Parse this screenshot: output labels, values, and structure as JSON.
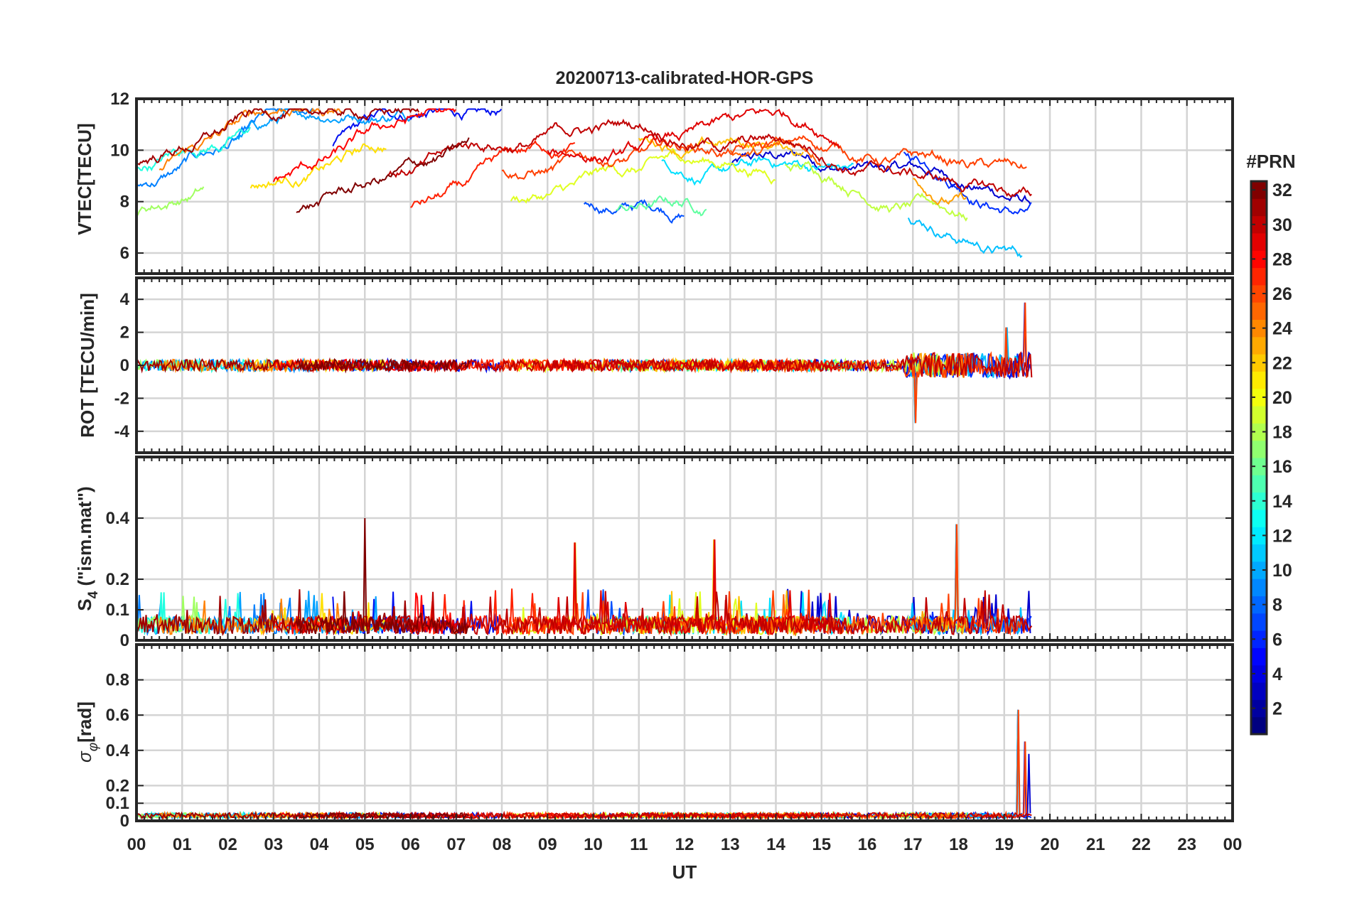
{
  "chart_data": {
    "type": "line",
    "title": "20200713-calibrated-HOR-GPS",
    "xlabel": "UT",
    "x_unit": "hours",
    "xlim": [
      0,
      24
    ],
    "x_ticks": [
      0,
      1,
      2,
      3,
      4,
      5,
      6,
      7,
      8,
      9,
      10,
      11,
      12,
      13,
      14,
      15,
      16,
      17,
      18,
      19,
      20,
      21,
      22,
      23,
      24
    ],
    "x_tick_labels": [
      "00",
      "01",
      "02",
      "03",
      "04",
      "05",
      "06",
      "07",
      "08",
      "09",
      "10",
      "11",
      "12",
      "13",
      "14",
      "15",
      "16",
      "17",
      "18",
      "19",
      "20",
      "21",
      "22",
      "23",
      "00"
    ],
    "data_span": [
      0,
      19.65
    ],
    "panels": [
      {
        "id": "vtec",
        "ylabel": "VTEC[TECU]",
        "ylim": [
          5.2,
          12
        ],
        "y_ticks": [
          6,
          8,
          10,
          12
        ],
        "y_tick_labels": [
          "6",
          "8",
          "10",
          "12"
        ],
        "baseline_range": [
          7.5,
          10.5
        ],
        "noise": 0.35
      },
      {
        "id": "rot",
        "ylabel": "ROT [TECU/min]",
        "ylim": [
          -5.3,
          5.3
        ],
        "y_ticks": [
          -4,
          -2,
          0,
          2,
          4
        ],
        "y_tick_labels": [
          "-4",
          "-2",
          "0",
          "2",
          "4"
        ],
        "baseline_range": [
          0,
          0
        ],
        "noise": 0.35,
        "peaks": [
          {
            "x": 17.05,
            "value": -3.5
          },
          {
            "x": 19.45,
            "value": 3.8
          },
          {
            "x": 19.05,
            "value": 2.3
          }
        ]
      },
      {
        "id": "s4",
        "ylabel": "S4 (\"ism.mat\")",
        "ylabel_main": "S",
        "ylabel_sub": "4",
        "ylabel_rest": " (\"ism.mat\")",
        "ylim": [
          0,
          0.6
        ],
        "y_ticks": [
          0,
          0.1,
          0.2,
          0.4
        ],
        "y_tick_labels": [
          "0",
          "0.1",
          "0.2",
          "0.4"
        ],
        "baseline_range": [
          0.02,
          0.08
        ],
        "noise": 0.06,
        "peaks": [
          {
            "x": 5.0,
            "value": 0.4
          },
          {
            "x": 17.95,
            "value": 0.38
          },
          {
            "x": 12.65,
            "value": 0.33
          },
          {
            "x": 9.6,
            "value": 0.32
          }
        ]
      },
      {
        "id": "sigma_phi",
        "ylabel": "σφ[rad]",
        "ylabel_main": "σ",
        "ylabel_sub": "φ",
        "ylabel_rest": "[rad]",
        "ylim": [
          0,
          1
        ],
        "y_ticks": [
          0,
          0.1,
          0.2,
          0.4,
          0.6,
          0.8
        ],
        "y_tick_labels": [
          "0",
          "0.1",
          "0.2",
          "0.4",
          "0.6",
          "0.8"
        ],
        "baseline_range": [
          0.03,
          0.05
        ],
        "noise": 0.015,
        "peaks": [
          {
            "x": 19.3,
            "value": 0.63
          },
          {
            "x": 19.45,
            "value": 0.45
          },
          {
            "x": 19.55,
            "value": 0.38
          }
        ]
      }
    ],
    "colorbar": {
      "label": "#PRN",
      "range": [
        1,
        32
      ],
      "ticks": [
        2,
        4,
        6,
        8,
        10,
        12,
        14,
        16,
        18,
        20,
        22,
        24,
        26,
        28,
        30,
        32
      ],
      "tick_labels": [
        "2",
        "4",
        "6",
        "8",
        "10",
        "12",
        "14",
        "16",
        "18",
        "20",
        "22",
        "24",
        "26",
        "28",
        "30",
        "32"
      ],
      "colormap": "jet"
    },
    "series": [
      {
        "prn": 2,
        "start": 13.0,
        "end": 19.6,
        "color": "#0000d0"
      },
      {
        "prn": 3,
        "start": 4.3,
        "end": 8.0,
        "color": "#0010f0"
      },
      {
        "prn": 5,
        "start": 16.8,
        "end": 19.6,
        "color": "#0030ff"
      },
      {
        "prn": 6,
        "start": 9.8,
        "end": 12.0,
        "color": "#0050ff"
      },
      {
        "prn": 8,
        "start": 0.0,
        "end": 3.9,
        "color": "#0080ff"
      },
      {
        "prn": 10,
        "start": 2.0,
        "end": 6.0,
        "color": "#00a0ff"
      },
      {
        "prn": 11,
        "start": 16.9,
        "end": 19.4,
        "color": "#00c0ff"
      },
      {
        "prn": 12,
        "start": 11.5,
        "end": 15.7,
        "color": "#00e0ff"
      },
      {
        "prn": 13,
        "start": 0.0,
        "end": 2.5,
        "color": "#20ffe0"
      },
      {
        "prn": 15,
        "start": 10.5,
        "end": 12.5,
        "color": "#60ffa0"
      },
      {
        "prn": 17,
        "start": 0.0,
        "end": 1.5,
        "color": "#a0ff60"
      },
      {
        "prn": 18,
        "start": 14.2,
        "end": 18.2,
        "color": "#c0ff40"
      },
      {
        "prn": 19,
        "start": 8.2,
        "end": 14.0,
        "color": "#e0ff20"
      },
      {
        "prn": 21,
        "start": 2.5,
        "end": 5.5,
        "color": "#ffe000"
      },
      {
        "prn": 22,
        "start": 11.0,
        "end": 14.6,
        "color": "#ffc000"
      },
      {
        "prn": 23,
        "start": 17.0,
        "end": 18.2,
        "color": "#ffa000"
      },
      {
        "prn": 24,
        "start": 0.5,
        "end": 4.5,
        "color": "#ff8000"
      },
      {
        "prn": 25,
        "start": 13.0,
        "end": 15.0,
        "color": "#ff6000"
      },
      {
        "prn": 26,
        "start": 8.0,
        "end": 19.5,
        "color": "#ff4000"
      },
      {
        "prn": 27,
        "start": 6.0,
        "end": 9.6,
        "color": "#ff2000"
      },
      {
        "prn": 28,
        "start": 3.0,
        "end": 7.0,
        "color": "#ff0000"
      },
      {
        "prn": 29,
        "start": 9.0,
        "end": 15.4,
        "color": "#e00000"
      },
      {
        "prn": 30,
        "start": 5.5,
        "end": 19.6,
        "color": "#c00000"
      },
      {
        "prn": 31,
        "start": 0.0,
        "end": 6.2,
        "color": "#a00000"
      },
      {
        "prn": 32,
        "start": 3.5,
        "end": 7.3,
        "color": "#800000"
      }
    ]
  }
}
